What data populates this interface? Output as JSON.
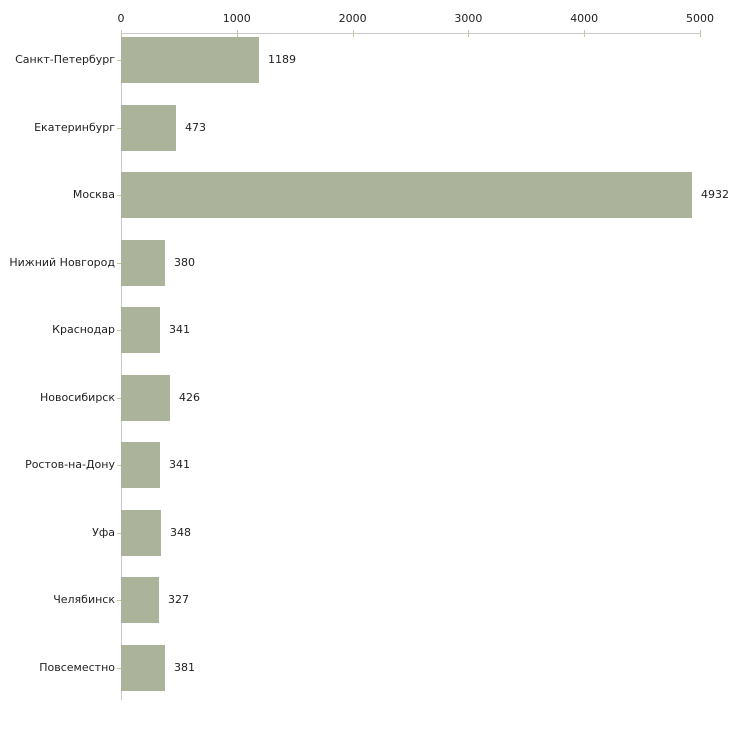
{
  "chart_data": {
    "type": "bar",
    "orientation": "horizontal",
    "title": "",
    "xlabel": "",
    "ylabel": "",
    "categories": [
      "Санкт-Петербург",
      "Екатеринбург",
      "Москва",
      "Нижний Новгород",
      "Краснодар",
      "Новосибирск",
      "Ростов-на-Дону",
      "Уфа",
      "Челябинск",
      "Повсеместно"
    ],
    "values": [
      1189,
      473,
      4932,
      380,
      341,
      426,
      341,
      348,
      327,
      381
    ],
    "value_labels": [
      "1189",
      "473",
      "4932",
      "380",
      "341",
      "426",
      "341",
      "348",
      "327",
      "381"
    ],
    "x_axis": {
      "position": "top",
      "range": [
        0,
        5000
      ],
      "ticks": [
        0,
        1000,
        2000,
        3000,
        4000,
        5000
      ],
      "tick_labels": [
        "0",
        "1000",
        "2000",
        "3000",
        "4000",
        "5000"
      ]
    },
    "grid": false,
    "legend": null,
    "colors": {
      "bar_fill": "#abb39a",
      "axis_line": "#c9c9c9",
      "tick_mark": "#c3c7a2",
      "text": "#1f1f1f",
      "background": "#ffffff"
    }
  }
}
